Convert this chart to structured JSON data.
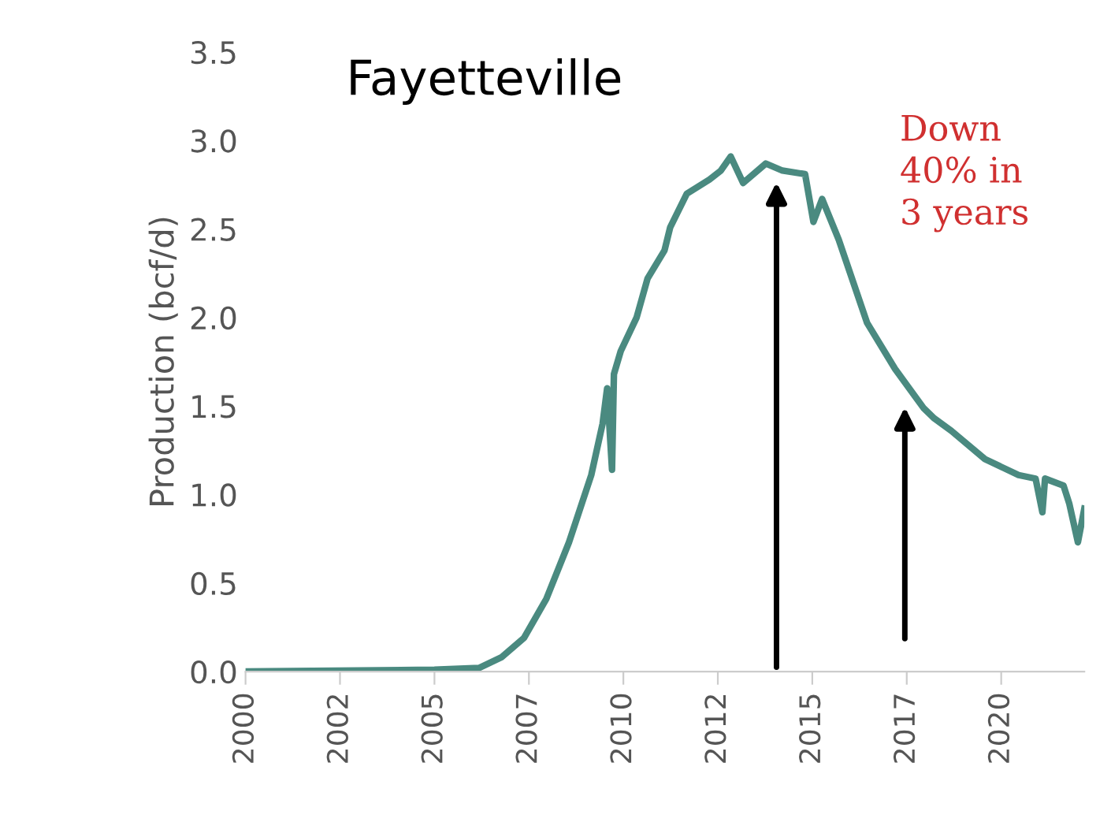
{
  "chart_data": {
    "type": "line",
    "title": "Fayetteville",
    "ylabel": "Production (bcf/d)",
    "x": [
      2000,
      2005,
      2006.18,
      2006.77,
      2007.37,
      2007.96,
      2008.56,
      2009.15,
      2009.45,
      2009.57,
      2009.7,
      2009.75,
      2009.93,
      2010.35,
      2010.64,
      2011.09,
      2011.24,
      2011.68,
      2012.28,
      2012.58,
      2012.84,
      2013.17,
      2013.77,
      2014.21,
      2014.81,
      2015.03,
      2015.26,
      2015.7,
      2016.45,
      2017.19,
      2017.94,
      2018.23,
      2018.68,
      2019.57,
      2020.46,
      2020.91,
      2021.09,
      2021.16,
      2021.65,
      2021.8,
      2022.03,
      2022.2
    ],
    "series": [
      {
        "color": "#4a8a80",
        "values": [
          0,
          0.01,
          0.02,
          0.08,
          0.19,
          0.41,
          0.73,
          1.11,
          1.4,
          1.6,
          1.14,
          1.68,
          1.81,
          2.0,
          2.22,
          2.38,
          2.51,
          2.7,
          2.78,
          2.83,
          2.91,
          2.76,
          2.87,
          2.83,
          2.81,
          2.54,
          2.67,
          2.44,
          1.97,
          1.71,
          1.49,
          1.43,
          1.36,
          1.2,
          1.11,
          1.09,
          0.9,
          1.09,
          1.05,
          0.95,
          0.73,
          0.92
        ]
      }
    ],
    "xlim": [
      2000,
      2022.2
    ],
    "xticks": [
      2000,
      {
        "value": 2002.5,
        "label": "2002"
      },
      2005,
      {
        "value": 2007.5,
        "label": "2007"
      },
      2010,
      {
        "value": 2012.5,
        "label": "2012"
      },
      2015,
      {
        "value": 2017.5,
        "label": "2017"
      },
      2020
    ],
    "ylim": [
      0,
      3.5
    ],
    "yticks": [
      {
        "value": 0,
        "label": "0.0"
      },
      0.5,
      {
        "value": 1,
        "label": "1.0"
      },
      1.5,
      {
        "value": 2,
        "label": "2.0"
      },
      2.5,
      {
        "value": 3,
        "label": "3.0"
      },
      3.5
    ],
    "annotations": [
      "Down\n40% in\n3 years"
    ],
    "grid": false,
    "legend": false,
    "marker": "none",
    "line_style": "solid"
  }
}
